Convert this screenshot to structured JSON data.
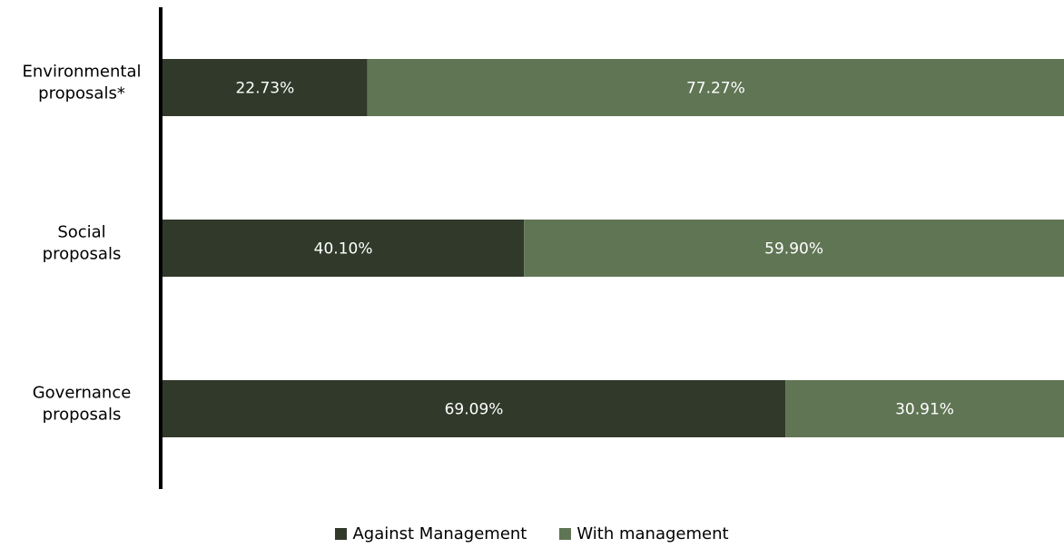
{
  "chart_data": {
    "type": "bar",
    "orientation": "horizontal",
    "stacked": true,
    "categories": [
      [
        "Environmental",
        "proposals*"
      ],
      [
        "Social",
        "proposals"
      ],
      [
        "Governance",
        "proposals"
      ]
    ],
    "series": [
      {
        "name": "Against Management",
        "color": "#31392a",
        "values": [
          22.73,
          40.1,
          69.09
        ],
        "labels": [
          "22.73%",
          "40.10%",
          "69.09%"
        ]
      },
      {
        "name": "With management",
        "color": "#607554",
        "values": [
          77.27,
          59.9,
          30.91
        ],
        "labels": [
          "77.27%",
          "59.90%",
          "30.91%"
        ]
      }
    ],
    "xlim": [
      0,
      100
    ],
    "legend_position": "bottom",
    "grid": false
  }
}
